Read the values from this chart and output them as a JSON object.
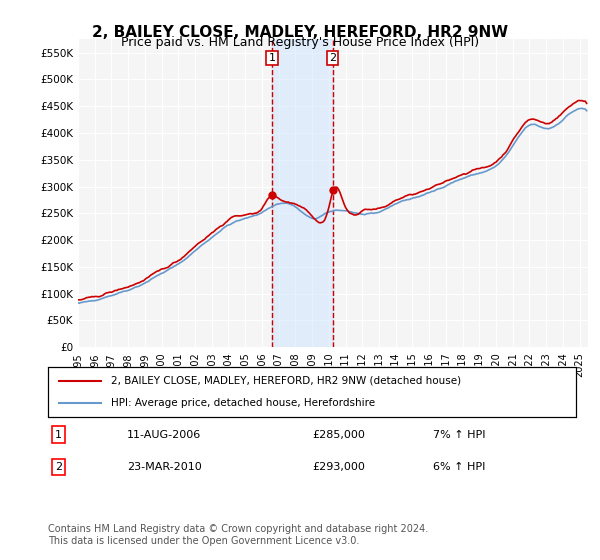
{
  "title": "2, BAILEY CLOSE, MADLEY, HEREFORD, HR2 9NW",
  "subtitle": "Price paid vs. HM Land Registry's House Price Index (HPI)",
  "title_fontsize": 11,
  "subtitle_fontsize": 9,
  "ylabel_ticks": [
    "£0",
    "£50K",
    "£100K",
    "£150K",
    "£200K",
    "£250K",
    "£300K",
    "£350K",
    "£400K",
    "£450K",
    "£500K",
    "£550K"
  ],
  "ytick_values": [
    0,
    50000,
    100000,
    150000,
    200000,
    250000,
    300000,
    350000,
    400000,
    450000,
    500000,
    550000
  ],
  "ylim": [
    0,
    575000
  ],
  "xlim_start": 1995.0,
  "xlim_end": 2025.5,
  "xtick_years": [
    "1995",
    "1996",
    "1997",
    "1998",
    "1999",
    "2000",
    "2001",
    "2002",
    "2003",
    "2004",
    "2005",
    "2006",
    "2007",
    "2008",
    "2009",
    "2010",
    "2011",
    "2012",
    "2013",
    "2014",
    "2015",
    "2016",
    "2017",
    "2018",
    "2019",
    "2020",
    "2021",
    "2022",
    "2023",
    "2024",
    "2025"
  ],
  "transaction1_date": 2006.61,
  "transaction1_price": 285000,
  "transaction1_label": "1",
  "transaction2_date": 2010.23,
  "transaction2_price": 293000,
  "transaction2_label": "2",
  "highlight_color": "#cce5ff",
  "highlight_alpha": 0.5,
  "vline_color": "#cc0000",
  "vline_style": "--",
  "property_line_color": "#cc0000",
  "hpi_line_color": "#6699cc",
  "background_color": "#f5f5f5",
  "grid_color": "#ffffff",
  "legend_entry1": "2, BAILEY CLOSE, MADLEY, HEREFORD, HR2 9NW (detached house)",
  "legend_entry2": "HPI: Average price, detached house, Herefordshire",
  "table_row1": [
    "1",
    "11-AUG-2006",
    "£285,000",
    "7% ↑ HPI"
  ],
  "table_row2": [
    "2",
    "23-MAR-2010",
    "£293,000",
    "6% ↑ HPI"
  ],
  "footnote": "Contains HM Land Registry data © Crown copyright and database right 2024.\nThis data is licensed under the Open Government Licence v3.0.",
  "footnote_fontsize": 7
}
